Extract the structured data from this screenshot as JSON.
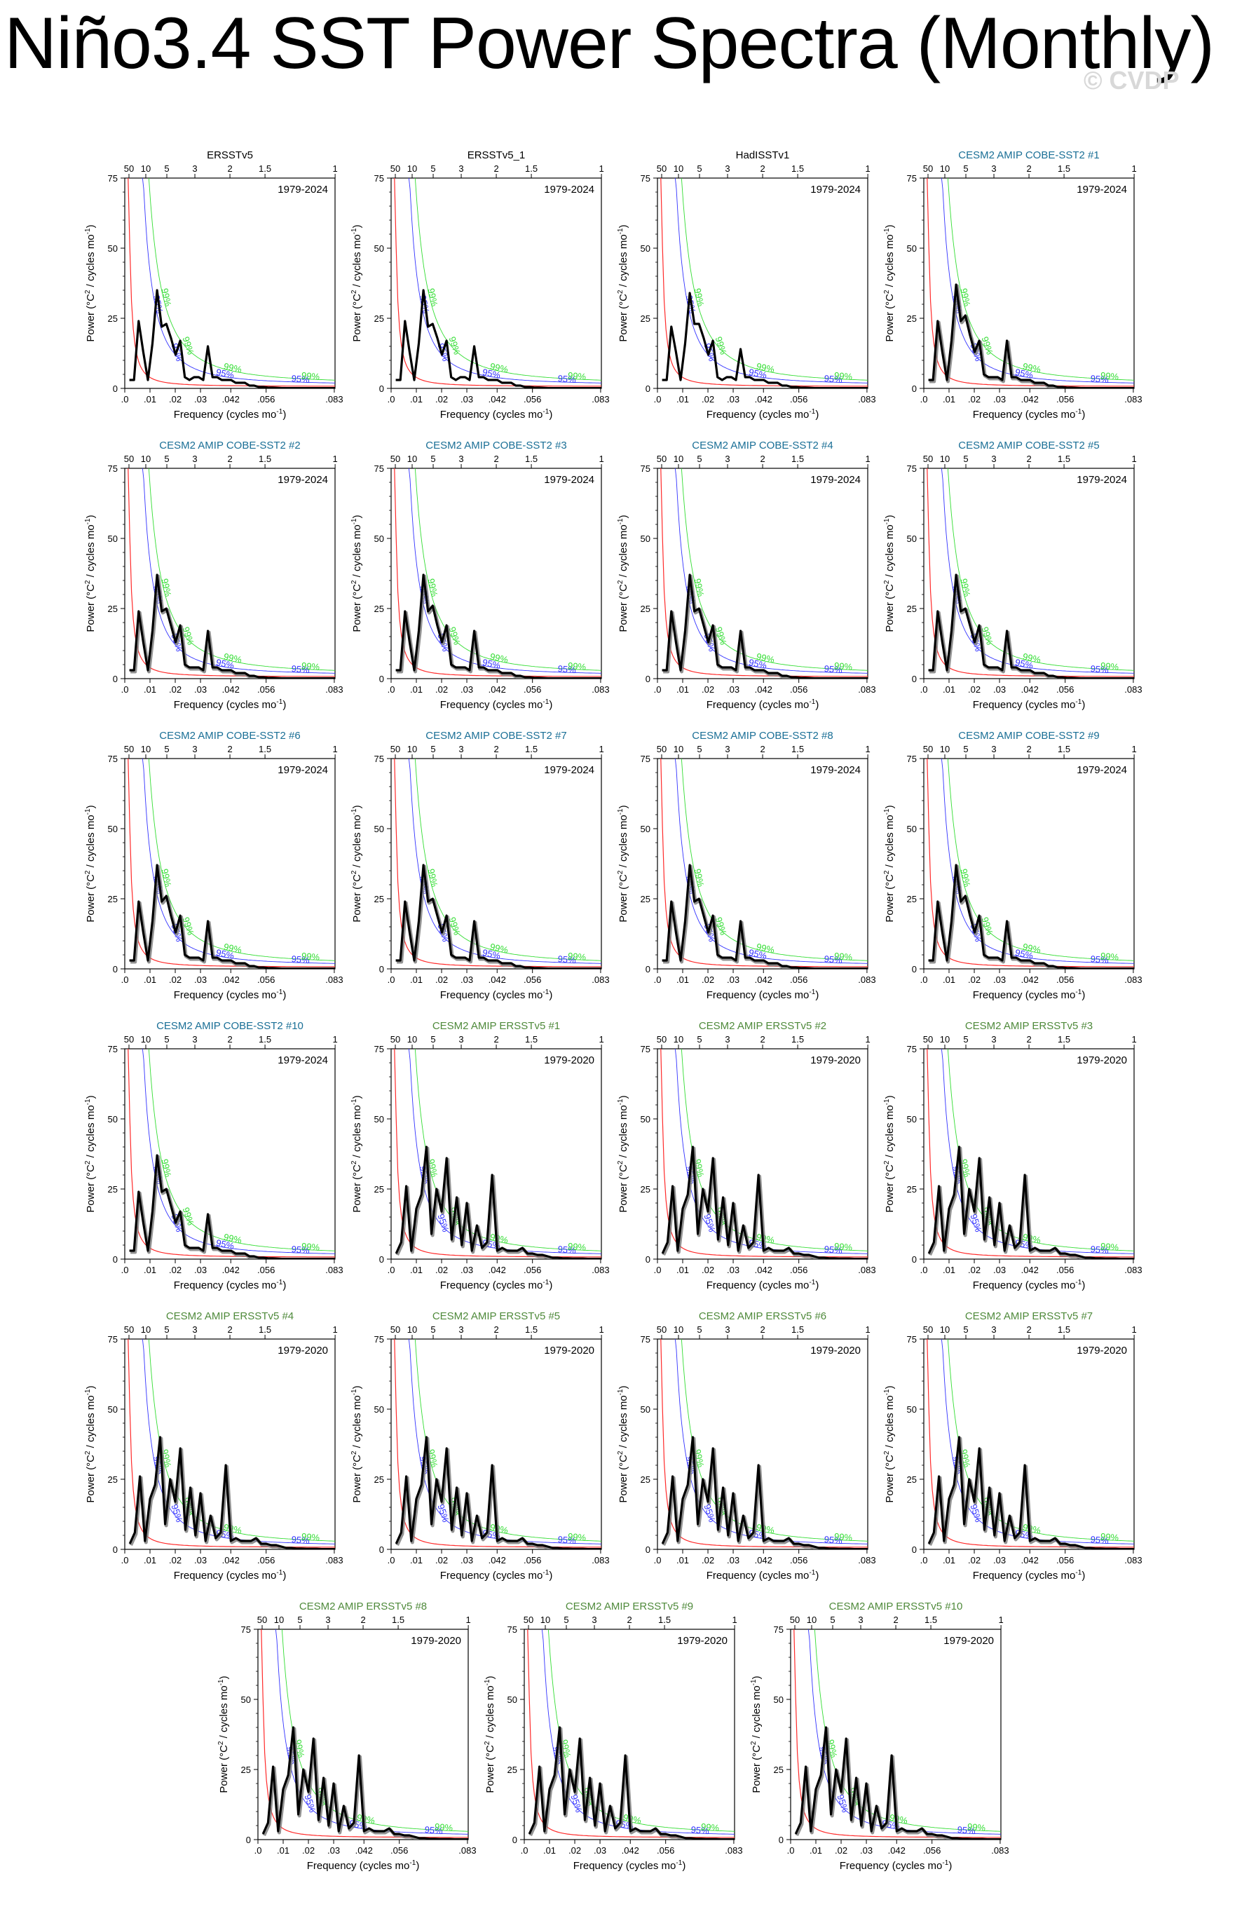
{
  "title": "Niño3.4 SST Power Spectra (Monthly)",
  "watermark": "© CVDP",
  "common": {
    "xlabel": "Frequency (cycles mo",
    "xlabel_sup": "-1",
    "ylabel": "Power (°C",
    "ylabel_sup2": "2",
    "ylabel_tail": " / cycles mo",
    "ylabel_sup": "-1",
    "x_ticks": [
      ".0",
      ".01",
      ".02",
      ".03",
      ".042",
      ".056",
      ".083"
    ],
    "x_tick_values": [
      0,
      0.01,
      0.02,
      0.03,
      0.042,
      0.056,
      0.083
    ],
    "top_ticks": [
      "50",
      "10",
      "5",
      "3",
      "2",
      "1.5",
      "1"
    ],
    "top_tick_periods_years": [
      50,
      10,
      5,
      3,
      2,
      1.5,
      1
    ],
    "y_ticks": [
      "0",
      "25",
      "50",
      "75"
    ],
    "y_tick_values": [
      0,
      25,
      50,
      75
    ],
    "label_95": "95%",
    "label_99": "99%",
    "xlim": [
      0,
      0.0833
    ],
    "ylim": [
      0,
      75
    ],
    "colors": {
      "obs_title": "#000000",
      "cobe_title": "#1a6f96",
      "ersst_title": "#4f8a3b",
      "spectrum": "#000000",
      "ensemble": "#777777",
      "red_noise": "#ff2a2a",
      "conf95": "#3333ff",
      "conf99": "#33dd33"
    }
  },
  "chart_data": [
    {
      "type": "line",
      "title": "ERSSTv5",
      "period": "1979-2024",
      "group": "obs",
      "x_step": 0.00183,
      "values": [
        3,
        3,
        24,
        13,
        3,
        16,
        35,
        22,
        23,
        18,
        12,
        17,
        4,
        3,
        4,
        4,
        3,
        15,
        4,
        4,
        3,
        3,
        3,
        2,
        2,
        2,
        1,
        1,
        0.5,
        0.5,
        0.3,
        0.3,
        0.2,
        0.1,
        0.1,
        0.1,
        0.1,
        0.1,
        0.1,
        0.1,
        0.1,
        0.1,
        0.1,
        0.1,
        0.1,
        0.1
      ]
    },
    {
      "type": "line",
      "title": "ERSSTv5_1",
      "period": "1979-2024",
      "group": "obs",
      "x_step": 0.00183,
      "values": [
        3,
        3,
        24,
        13,
        3,
        16,
        35,
        22,
        23,
        18,
        12,
        17,
        4,
        3,
        4,
        4,
        3,
        15,
        4,
        4,
        3,
        3,
        3,
        2,
        2,
        2,
        1,
        1,
        0.5,
        0.5,
        0.3,
        0.3,
        0.2,
        0.1,
        0.1,
        0.1,
        0.1,
        0.1,
        0.1,
        0.1,
        0.1,
        0.1,
        0.1,
        0.1,
        0.1,
        0.1
      ]
    },
    {
      "type": "line",
      "title": "HadISSTv1",
      "period": "1979-2024",
      "group": "obs",
      "x_step": 0.00183,
      "values": [
        3,
        3,
        22,
        13,
        3,
        16,
        34,
        23,
        23,
        18,
        12,
        17,
        4,
        3,
        4,
        4,
        3,
        14,
        4,
        4,
        3,
        3,
        3,
        2,
        2,
        2,
        1,
        1,
        0.5,
        0.5,
        0.3,
        0.3,
        0.2,
        0.1,
        0.1,
        0.1,
        0.1,
        0.1,
        0.1,
        0.1,
        0.1,
        0.1,
        0.1,
        0.1,
        0.1,
        0.1
      ]
    },
    {
      "type": "line",
      "title": "CESM2 AMIP COBE-SST2 #1",
      "period": "1979-2024",
      "group": "cobe",
      "x_step": 0.00183,
      "values": [
        3,
        3,
        24,
        13,
        3,
        17,
        37,
        24,
        26,
        19,
        13,
        17,
        5,
        4,
        4,
        4,
        3,
        17,
        4,
        4,
        3,
        3,
        3,
        2,
        2,
        2,
        1,
        1,
        0.5,
        0.5,
        0.3,
        0.3,
        0.2,
        0.1,
        0.1,
        0.1,
        0.1,
        0.1,
        0.1,
        0.1,
        0.1,
        0.1,
        0.1,
        0.1,
        0.1,
        0.1
      ]
    },
    {
      "type": "line",
      "title": "CESM2 AMIP COBE-SST2 #2",
      "period": "1979-2024",
      "group": "cobe",
      "x_step": 0.00183,
      "values": [
        3,
        3,
        24,
        13,
        3,
        17,
        37,
        24,
        25,
        19,
        13,
        19,
        5,
        4,
        4,
        4,
        3,
        17,
        4,
        4,
        3,
        3,
        3,
        2,
        2,
        2,
        1,
        1,
        0.5,
        0.5,
        0.3,
        0.3,
        0.2,
        0.1,
        0.1,
        0.1,
        0.1,
        0.1,
        0.1,
        0.1,
        0.1,
        0.1,
        0.1,
        0.1,
        0.1,
        0.1
      ]
    },
    {
      "type": "line",
      "title": "CESM2 AMIP COBE-SST2 #3",
      "period": "1979-2024",
      "group": "cobe",
      "x_step": 0.00183,
      "values": [
        3,
        3,
        24,
        13,
        3,
        17,
        37,
        24,
        26,
        19,
        13,
        19,
        5,
        4,
        4,
        4,
        3,
        17,
        4,
        4,
        3,
        3,
        3,
        2,
        2,
        2,
        1,
        1,
        0.5,
        0.5,
        0.3,
        0.3,
        0.2,
        0.1,
        0.1,
        0.1,
        0.1,
        0.1,
        0.1,
        0.1,
        0.1,
        0.1,
        0.1,
        0.1,
        0.1,
        0.1
      ]
    },
    {
      "type": "line",
      "title": "CESM2 AMIP COBE-SST2 #4",
      "period": "1979-2024",
      "group": "cobe",
      "x_step": 0.00183,
      "values": [
        3,
        3,
        24,
        13,
        3,
        17,
        37,
        24,
        25,
        19,
        13,
        19,
        5,
        4,
        4,
        4,
        3,
        17,
        4,
        4,
        3,
        3,
        3,
        2,
        2,
        2,
        1,
        1,
        0.5,
        0.5,
        0.3,
        0.3,
        0.2,
        0.1,
        0.1,
        0.1,
        0.1,
        0.1,
        0.1,
        0.1,
        0.1,
        0.1,
        0.1,
        0.1,
        0.1,
        0.1
      ]
    },
    {
      "type": "line",
      "title": "CESM2 AMIP COBE-SST2 #5",
      "period": "1979-2024",
      "group": "cobe",
      "x_step": 0.00183,
      "values": [
        3,
        3,
        24,
        13,
        3,
        17,
        37,
        24,
        25,
        19,
        13,
        19,
        5,
        4,
        4,
        4,
        3,
        17,
        4,
        4,
        3,
        3,
        3,
        2,
        2,
        2,
        1,
        1,
        0.5,
        0.5,
        0.3,
        0.3,
        0.2,
        0.1,
        0.1,
        0.1,
        0.1,
        0.1,
        0.1,
        0.1,
        0.1,
        0.1,
        0.1,
        0.1,
        0.1,
        0.1
      ]
    },
    {
      "type": "line",
      "title": "CESM2 AMIP COBE-SST2 #6",
      "period": "1979-2024",
      "group": "cobe",
      "x_step": 0.00183,
      "values": [
        3,
        3,
        24,
        13,
        3,
        17,
        37,
        24,
        26,
        19,
        13,
        19,
        5,
        4,
        4,
        4,
        3,
        17,
        4,
        4,
        3,
        3,
        3,
        2,
        2,
        2,
        1,
        1,
        0.5,
        0.5,
        0.3,
        0.3,
        0.2,
        0.1,
        0.1,
        0.1,
        0.1,
        0.1,
        0.1,
        0.1,
        0.1,
        0.1,
        0.1,
        0.1,
        0.1,
        0.1
      ]
    },
    {
      "type": "line",
      "title": "CESM2 AMIP COBE-SST2 #7",
      "period": "1979-2024",
      "group": "cobe",
      "x_step": 0.00183,
      "values": [
        3,
        3,
        24,
        13,
        3,
        17,
        37,
        24,
        25,
        19,
        13,
        19,
        5,
        4,
        4,
        4,
        3,
        17,
        4,
        4,
        3,
        3,
        3,
        2,
        2,
        2,
        1,
        1,
        0.5,
        0.5,
        0.3,
        0.3,
        0.2,
        0.1,
        0.1,
        0.1,
        0.1,
        0.1,
        0.1,
        0.1,
        0.1,
        0.1,
        0.1,
        0.1,
        0.1,
        0.1
      ]
    },
    {
      "type": "line",
      "title": "CESM2 AMIP COBE-SST2 #8",
      "period": "1979-2024",
      "group": "cobe",
      "x_step": 0.00183,
      "values": [
        3,
        3,
        24,
        13,
        3,
        17,
        37,
        24,
        25,
        19,
        13,
        19,
        5,
        4,
        4,
        4,
        3,
        17,
        4,
        4,
        3,
        3,
        3,
        2,
        2,
        2,
        1,
        1,
        0.5,
        0.5,
        0.3,
        0.3,
        0.2,
        0.1,
        0.1,
        0.1,
        0.1,
        0.1,
        0.1,
        0.1,
        0.1,
        0.1,
        0.1,
        0.1,
        0.1,
        0.1
      ]
    },
    {
      "type": "line",
      "title": "CESM2 AMIP COBE-SST2 #9",
      "period": "1979-2024",
      "group": "cobe",
      "x_step": 0.00183,
      "values": [
        3,
        3,
        24,
        13,
        3,
        17,
        37,
        24,
        26,
        19,
        13,
        19,
        5,
        4,
        4,
        4,
        3,
        17,
        4,
        4,
        3,
        3,
        3,
        2,
        2,
        2,
        1,
        1,
        0.5,
        0.5,
        0.3,
        0.3,
        0.2,
        0.1,
        0.1,
        0.1,
        0.1,
        0.1,
        0.1,
        0.1,
        0.1,
        0.1,
        0.1,
        0.1,
        0.1,
        0.1
      ]
    },
    {
      "type": "line",
      "title": "CESM2 AMIP COBE-SST2 #10",
      "period": "1979-2024",
      "group": "cobe",
      "x_step": 0.00183,
      "values": [
        3,
        3,
        24,
        13,
        3,
        17,
        37,
        24,
        25,
        19,
        13,
        17,
        5,
        4,
        4,
        4,
        3,
        16,
        4,
        4,
        3,
        3,
        3,
        2,
        2,
        2,
        1,
        1,
        0.5,
        0.5,
        0.3,
        0.3,
        0.2,
        0.1,
        0.1,
        0.1,
        0.1,
        0.1,
        0.1,
        0.1,
        0.1,
        0.1,
        0.1,
        0.1,
        0.1,
        0.1
      ]
    },
    {
      "type": "line",
      "title": "CESM2 AMIP ERSSTv5 #1",
      "period": "1979-2020",
      "group": "ersst",
      "x_step": 0.002,
      "values": [
        2,
        6,
        26,
        3,
        18,
        23,
        40,
        9,
        25,
        17,
        36,
        7,
        22,
        5,
        20,
        3,
        12,
        4,
        6,
        30,
        3,
        4,
        3,
        3,
        3,
        4,
        2,
        2,
        1.5,
        1.5,
        1,
        0.5,
        0.5,
        0.3,
        0.3,
        0.2,
        0.2,
        0.2,
        0.1,
        0.1,
        0.1,
        0.1
      ]
    },
    {
      "type": "line",
      "title": "CESM2 AMIP ERSSTv5 #2",
      "period": "1979-2020",
      "group": "ersst",
      "x_step": 0.002,
      "values": [
        2,
        6,
        26,
        3,
        18,
        23,
        40,
        9,
        25,
        17,
        36,
        7,
        22,
        5,
        20,
        3,
        12,
        4,
        6,
        30,
        3,
        4,
        3,
        3,
        3,
        4,
        2,
        2,
        1.5,
        1.5,
        1,
        0.5,
        0.5,
        0.3,
        0.3,
        0.2,
        0.2,
        0.2,
        0.1,
        0.1,
        0.1,
        0.1
      ]
    },
    {
      "type": "line",
      "title": "CESM2 AMIP ERSSTv5 #3",
      "period": "1979-2020",
      "group": "ersst",
      "x_step": 0.002,
      "values": [
        2,
        6,
        26,
        3,
        18,
        23,
        40,
        9,
        25,
        17,
        36,
        7,
        22,
        5,
        20,
        3,
        12,
        4,
        6,
        30,
        3,
        4,
        3,
        3,
        3,
        4,
        2,
        2,
        1.5,
        1.5,
        1,
        0.5,
        0.5,
        0.3,
        0.3,
        0.2,
        0.2,
        0.2,
        0.1,
        0.1,
        0.1,
        0.1
      ]
    },
    {
      "type": "line",
      "title": "CESM2 AMIP ERSSTv5 #4",
      "period": "1979-2020",
      "group": "ersst",
      "x_step": 0.002,
      "values": [
        2,
        6,
        26,
        3,
        18,
        23,
        40,
        9,
        25,
        17,
        36,
        7,
        22,
        5,
        20,
        3,
        12,
        4,
        6,
        30,
        3,
        4,
        3,
        3,
        3,
        4,
        2,
        2,
        1.5,
        1.5,
        1,
        0.5,
        0.5,
        0.3,
        0.3,
        0.2,
        0.2,
        0.2,
        0.1,
        0.1,
        0.1,
        0.1
      ]
    },
    {
      "type": "line",
      "title": "CESM2 AMIP ERSSTv5 #5",
      "period": "1979-2020",
      "group": "ersst",
      "x_step": 0.002,
      "values": [
        2,
        6,
        26,
        3,
        18,
        23,
        40,
        9,
        25,
        17,
        36,
        7,
        22,
        5,
        20,
        3,
        12,
        4,
        6,
        30,
        3,
        4,
        3,
        3,
        3,
        4,
        2,
        2,
        1.5,
        1.5,
        1,
        0.5,
        0.5,
        0.3,
        0.3,
        0.2,
        0.2,
        0.2,
        0.1,
        0.1,
        0.1,
        0.1
      ]
    },
    {
      "type": "line",
      "title": "CESM2 AMIP ERSSTv5 #6",
      "period": "1979-2020",
      "group": "ersst",
      "x_step": 0.002,
      "values": [
        2,
        6,
        26,
        3,
        18,
        23,
        40,
        9,
        25,
        17,
        36,
        7,
        22,
        5,
        20,
        3,
        12,
        4,
        6,
        30,
        3,
        4,
        3,
        3,
        3,
        4,
        2,
        2,
        1.5,
        1.5,
        1,
        0.5,
        0.5,
        0.3,
        0.3,
        0.2,
        0.2,
        0.2,
        0.1,
        0.1,
        0.1,
        0.1
      ]
    },
    {
      "type": "line",
      "title": "CESM2 AMIP ERSSTv5 #7",
      "period": "1979-2020",
      "group": "ersst",
      "x_step": 0.002,
      "values": [
        2,
        6,
        26,
        3,
        18,
        23,
        40,
        9,
        25,
        17,
        36,
        7,
        22,
        5,
        20,
        3,
        12,
        4,
        6,
        30,
        3,
        4,
        3,
        3,
        3,
        4,
        2,
        2,
        1.5,
        1.5,
        1,
        0.5,
        0.5,
        0.3,
        0.3,
        0.2,
        0.2,
        0.2,
        0.1,
        0.1,
        0.1,
        0.1
      ]
    },
    {
      "type": "line",
      "title": "CESM2 AMIP ERSSTv5 #8",
      "period": "1979-2020",
      "group": "ersst",
      "x_step": 0.002,
      "values": [
        2,
        6,
        26,
        3,
        18,
        23,
        40,
        9,
        25,
        17,
        36,
        7,
        22,
        5,
        20,
        3,
        12,
        4,
        6,
        30,
        3,
        4,
        3,
        3,
        3,
        4,
        2,
        2,
        1.5,
        1.5,
        1,
        0.5,
        0.5,
        0.3,
        0.3,
        0.2,
        0.2,
        0.2,
        0.1,
        0.1,
        0.1,
        0.1
      ]
    },
    {
      "type": "line",
      "title": "CESM2 AMIP ERSSTv5 #9",
      "period": "1979-2020",
      "group": "ersst",
      "x_step": 0.002,
      "values": [
        2,
        6,
        26,
        3,
        18,
        23,
        40,
        9,
        25,
        17,
        36,
        7,
        22,
        5,
        20,
        3,
        12,
        4,
        6,
        30,
        3,
        4,
        3,
        3,
        3,
        4,
        2,
        2,
        1.5,
        1.5,
        1,
        0.5,
        0.5,
        0.3,
        0.3,
        0.2,
        0.2,
        0.2,
        0.1,
        0.1,
        0.1,
        0.1
      ]
    },
    {
      "type": "line",
      "title": "CESM2 AMIP ERSSTv5 #10",
      "period": "1979-2020",
      "group": "ersst",
      "x_step": 0.002,
      "values": [
        2,
        6,
        26,
        3,
        18,
        23,
        40,
        9,
        25,
        17,
        36,
        7,
        22,
        5,
        20,
        3,
        12,
        4,
        6,
        30,
        3,
        4,
        3,
        3,
        3,
        4,
        2,
        2,
        1.5,
        1.5,
        1,
        0.5,
        0.5,
        0.3,
        0.3,
        0.2,
        0.2,
        0.2,
        0.1,
        0.1,
        0.1,
        0.1
      ]
    }
  ]
}
